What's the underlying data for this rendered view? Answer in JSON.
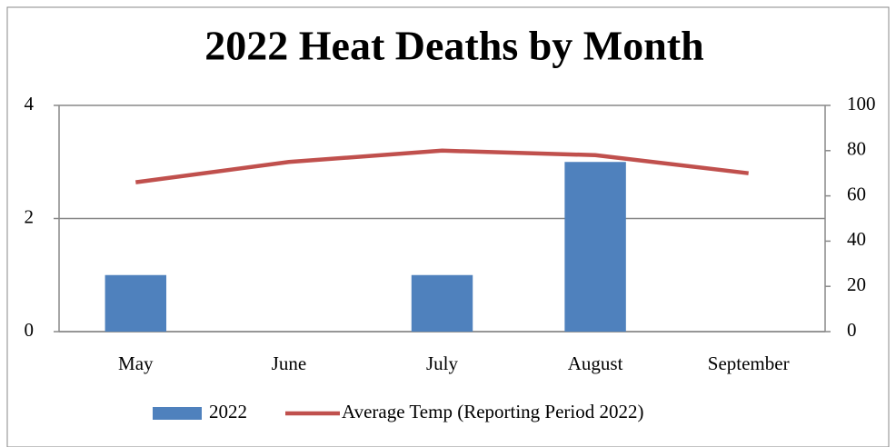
{
  "chart_data": {
    "type": "bar",
    "title": "2022 Heat Deaths by Month",
    "categories": [
      "May",
      "June",
      "July",
      "August",
      "September"
    ],
    "series": [
      {
        "name": "2022",
        "type": "bar",
        "color": "#4f81bd",
        "values": [
          1,
          0,
          1,
          3,
          0
        ]
      },
      {
        "name": "Average Temp (Reporting Period 2022)",
        "type": "line",
        "axis": "y2",
        "color": "#c0504d",
        "values": [
          66,
          75,
          80,
          78,
          70
        ]
      }
    ],
    "ylim": [
      0,
      4
    ],
    "yticks": [
      0,
      2,
      4
    ],
    "y2lim": [
      0,
      100
    ],
    "y2ticks": [
      0,
      20,
      40,
      60,
      80,
      100
    ],
    "grid": true,
    "legend": "bottom"
  }
}
